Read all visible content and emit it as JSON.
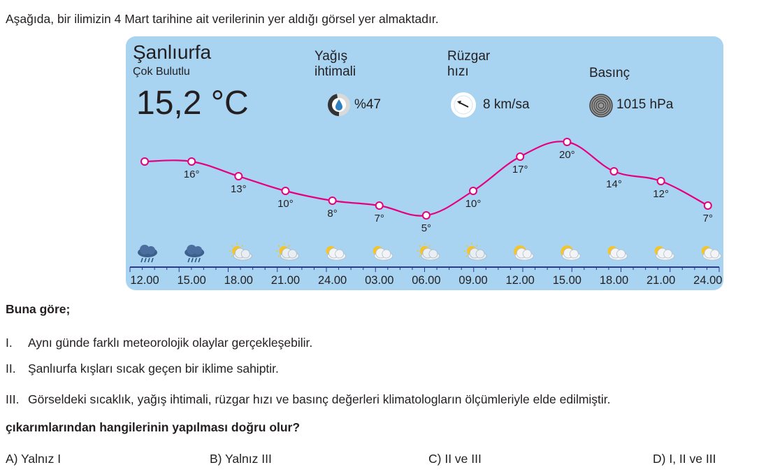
{
  "intro": "Aşağıda, bir ilimizin 4 Mart tarihine ait verilerinin yer aldığı görsel yer almaktadır.",
  "weather": {
    "city": "Şanlıurfa",
    "condition": "Çok Bulutlu",
    "temperature": "15,2 °C",
    "precip_label_1": "Yağış",
    "precip_label_2": "ihtimali",
    "precip_value": "%47",
    "precip_fraction": 0.47,
    "wind_label_1": "Rüzgar",
    "wind_label_2": "hızı",
    "wind_value": "8 km/sa",
    "pressure_label": "Basınç",
    "pressure_value": "1015 hPa"
  },
  "chart_data": {
    "type": "line",
    "x": [
      "12.00",
      "15.00",
      "18.00",
      "21.00",
      "24.00",
      "03.00",
      "06.00",
      "09.00",
      "12.00",
      "15.00",
      "18.00",
      "21.00",
      "24.00"
    ],
    "values": [
      16,
      16,
      13,
      10,
      8,
      7,
      5,
      10,
      17,
      20,
      14,
      12,
      7
    ],
    "point_labels": [
      "",
      "16°",
      "13°",
      "10°",
      "8°",
      "7°",
      "5°",
      "10°",
      "17°",
      "20°",
      "14°",
      "12°",
      "7°"
    ],
    "icons": [
      "rain-cloud",
      "rain-cloud",
      "partly-cloudy",
      "partly-cloudy",
      "partly-sunny",
      "partly-sunny",
      "partly-cloudy",
      "partly-cloudy",
      "sunny-cloud",
      "sunny-cloud",
      "partly-sunny",
      "partly-sunny",
      "partly-sunny"
    ],
    "line_color": "#e6007e",
    "grid": false
  },
  "question": {
    "lead": "Buna göre;",
    "statements": [
      {
        "num": "I.",
        "text": "Aynı günde farklı meteorolojik olaylar gerçekleşebilir."
      },
      {
        "num": "II.",
        "text": "Şanlıurfa kışları sıcak geçen bir iklime sahiptir."
      },
      {
        "num": "III.",
        "text": "Görseldeki sıcaklık, yağış ihtimali, rüzgar hızı ve basınç değerleri klimatologların ölçümleriyle elde edilmiştir."
      }
    ],
    "prompt": "çıkarımlarından hangilerinin yapılması doğru olur?",
    "options": [
      "A) Yalnız I",
      "B) Yalnız III",
      "C) II ve III",
      "D) I, II ve III"
    ]
  }
}
